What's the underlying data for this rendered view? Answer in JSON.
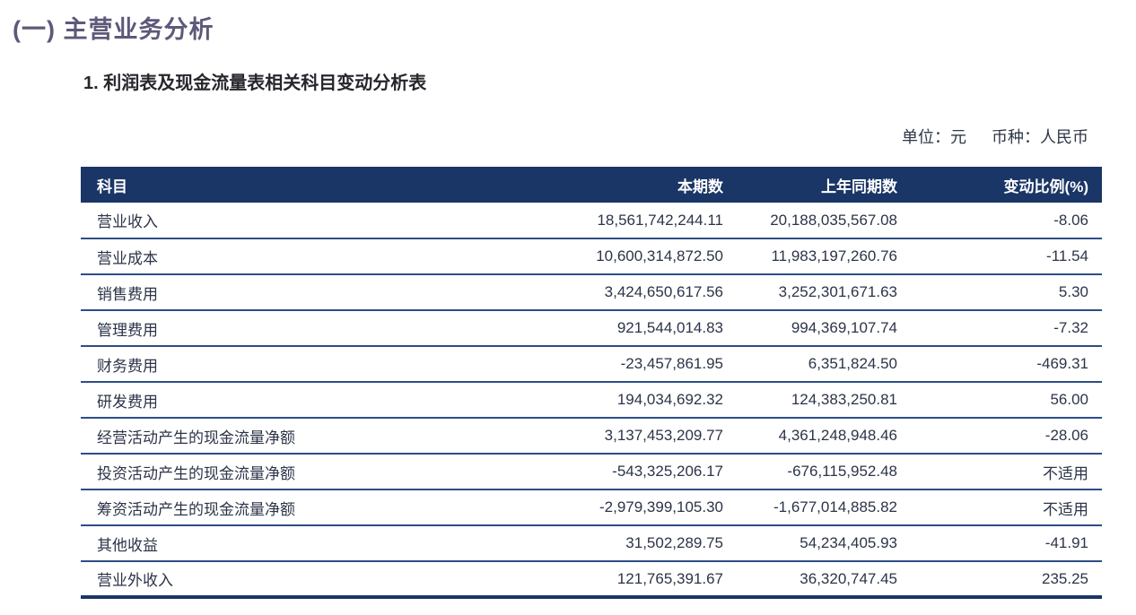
{
  "page": {
    "section_title": "(一) 主营业务分析",
    "subtitle": "1. 利润表及现金流量表相关科目变动分析表",
    "unit_label": "单位：元",
    "currency_label": "币种：人民币"
  },
  "table": {
    "columns": [
      "科目",
      "本期数",
      "上年同期数",
      "变动比例(%)"
    ],
    "rows": [
      {
        "subject": "营业收入",
        "current": "18,561,742,244.11",
        "prior": "20,188,035,567.08",
        "change": "-8.06"
      },
      {
        "subject": "营业成本",
        "current": "10,600,314,872.50",
        "prior": "11,983,197,260.76",
        "change": "-11.54"
      },
      {
        "subject": "销售费用",
        "current": "3,424,650,617.56",
        "prior": "3,252,301,671.63",
        "change": "5.30"
      },
      {
        "subject": "管理费用",
        "current": "921,544,014.83",
        "prior": "994,369,107.74",
        "change": "-7.32"
      },
      {
        "subject": "财务费用",
        "current": "-23,457,861.95",
        "prior": "6,351,824.50",
        "change": "-469.31"
      },
      {
        "subject": "研发费用",
        "current": "194,034,692.32",
        "prior": "124,383,250.81",
        "change": "56.00"
      },
      {
        "subject": "经营活动产生的现金流量净额",
        "current": "3,137,453,209.77",
        "prior": "4,361,248,948.46",
        "change": "-28.06"
      },
      {
        "subject": "投资活动产生的现金流量净额",
        "current": "-543,325,206.17",
        "prior": "-676,115,952.48",
        "change": "不适用"
      },
      {
        "subject": "筹资活动产生的现金流量净额",
        "current": "-2,979,399,105.30",
        "prior": "-1,677,014,885.82",
        "change": "不适用"
      },
      {
        "subject": "其他收益",
        "current": "31,502,289.75",
        "prior": "54,234,405.93",
        "change": "-41.91"
      },
      {
        "subject": "营业外收入",
        "current": "121,765,391.67",
        "prior": "36,320,747.45",
        "change": "235.25"
      }
    ]
  },
  "colors": {
    "header_bg": "#1a3666",
    "divider": "#2d4d87",
    "title_color": "#5e5879",
    "subtitle_color": "#27262c",
    "body_text": "#2c3448",
    "unit_text": "#2f3747"
  }
}
